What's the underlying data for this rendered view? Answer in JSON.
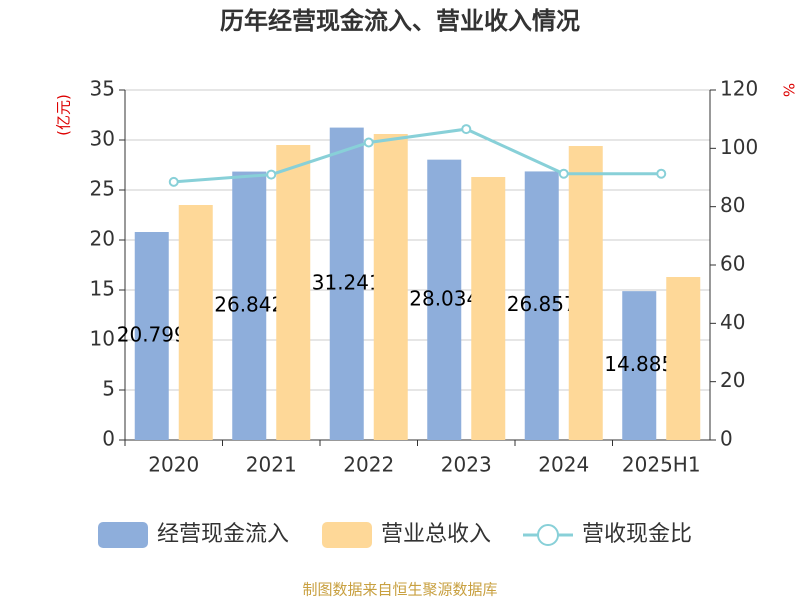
{
  "chart_data": {
    "type": "bar",
    "title": "历年经营现金流入、营业收入情况",
    "y_label": "(亿元)",
    "y2_label": "%",
    "source": "制图数据来自恒生聚源数据库",
    "categories": [
      "2020",
      "2021",
      "2022",
      "2023",
      "2024",
      "2025H1"
    ],
    "series": [
      {
        "name": "经营现金流入",
        "color": "#8eaedb",
        "type": "bar",
        "values": [
          20.799,
          26.842,
          31.241,
          28.034,
          26.857,
          14.885
        ]
      },
      {
        "name": "营业总收入",
        "color": "#fed898",
        "type": "bar",
        "values": [
          23.5,
          29.5,
          30.6,
          26.3,
          29.4,
          16.3
        ]
      },
      {
        "name": "营收现金比",
        "color": "#88d0d8",
        "type": "line",
        "axis": "y2",
        "values": [
          88.5,
          91,
          102,
          106.6,
          91.3,
          91.3
        ]
      }
    ],
    "ylim": [
      0,
      35
    ],
    "yticks": [
      0,
      5,
      10,
      15,
      20,
      25,
      30,
      35
    ],
    "y2lim": [
      0,
      120
    ],
    "y2ticks": [
      0,
      20,
      40,
      60,
      80,
      100,
      120
    ],
    "grid": true
  }
}
